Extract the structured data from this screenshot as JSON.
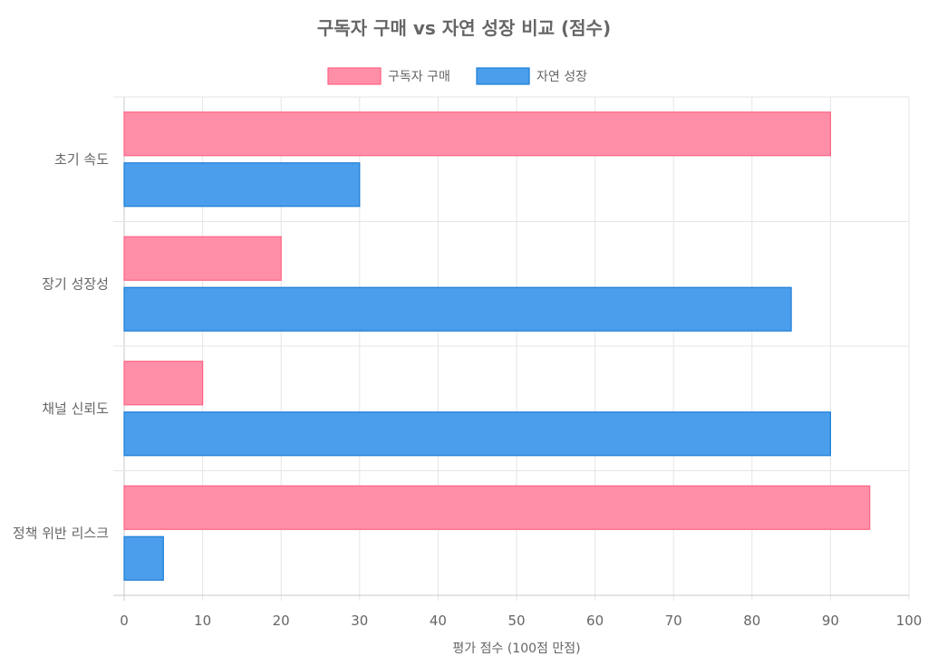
{
  "chart_data": {
    "type": "bar",
    "orientation": "horizontal",
    "title": "구독자 구매 vs 자연 성장 비교 (점수)",
    "xlabel": "평가 점수 (100점 만점)",
    "ylabel": "",
    "xlim": [
      0,
      100
    ],
    "x_ticks": [
      0,
      10,
      20,
      30,
      40,
      50,
      60,
      70,
      80,
      90,
      100
    ],
    "grid": true,
    "legend_position": "top-center",
    "categories": [
      "초기 속도",
      "장기 성장성",
      "채널 신뢰도",
      "정책 위반 리스크"
    ],
    "series": [
      {
        "name": "구독자 구매",
        "values": [
          90,
          20,
          10,
          95
        ],
        "color": "#ff8fa8",
        "border_color": "#ff6384"
      },
      {
        "name": "자연 성장",
        "values": [
          30,
          85,
          90,
          5
        ],
        "color": "#4b9eeb",
        "border_color": "#1c7ed6"
      }
    ]
  }
}
